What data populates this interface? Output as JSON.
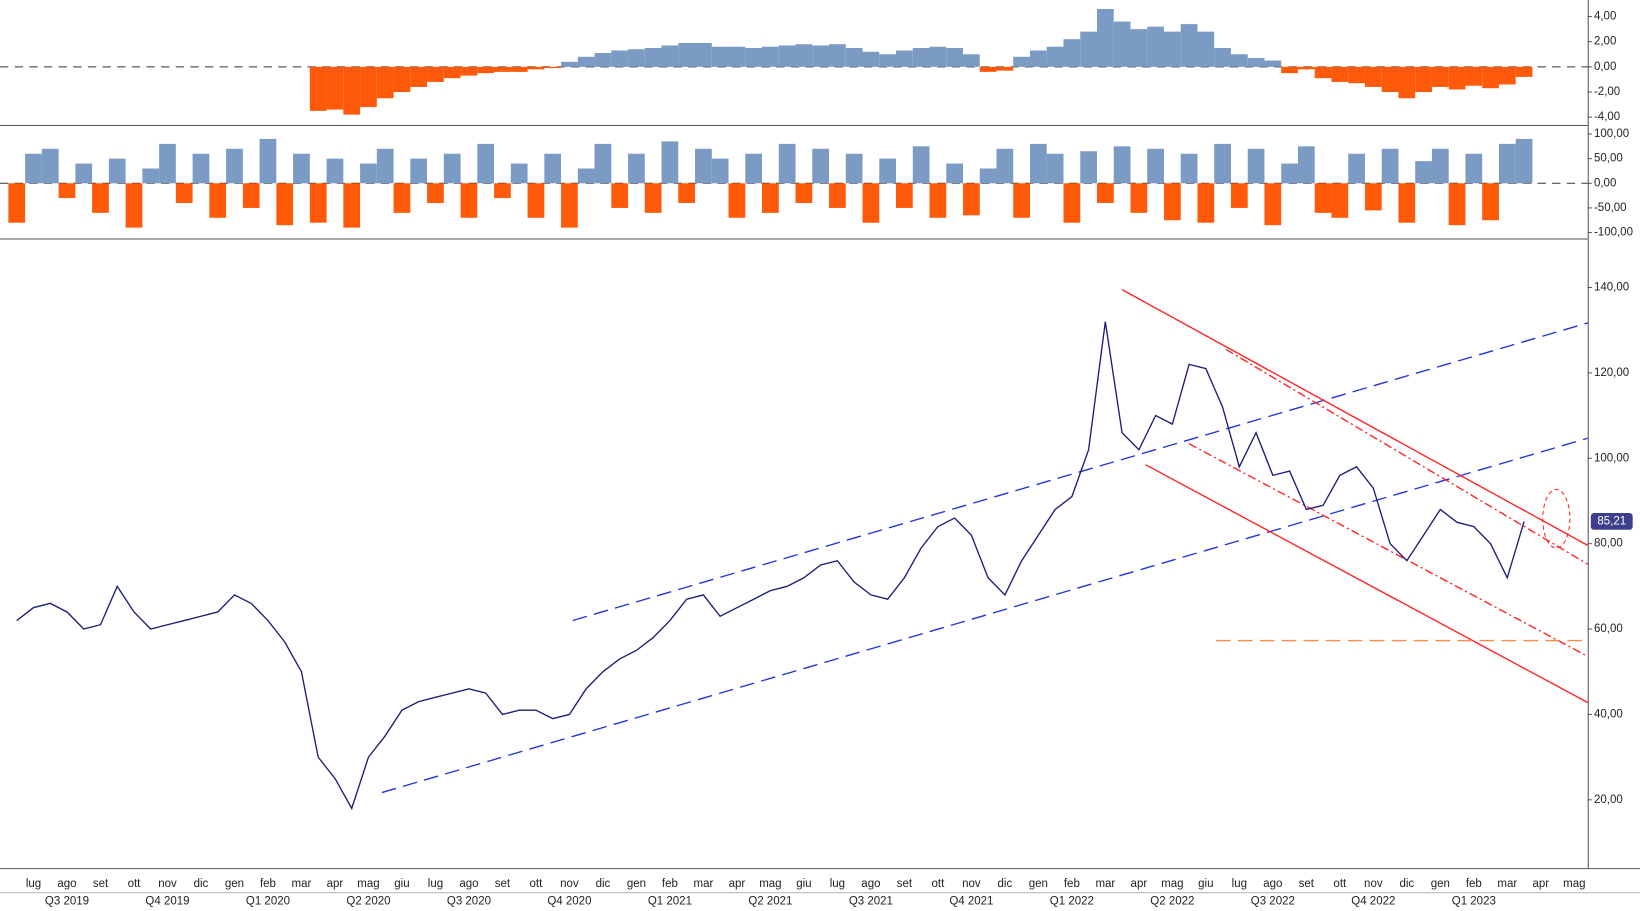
{
  "chart_data": [
    {
      "type": "bar",
      "x": [
        0,
        0.5,
        1,
        1.5,
        2,
        2.5,
        3,
        3.5,
        4,
        4.5,
        5,
        5.5,
        6,
        6.5,
        7,
        7.5,
        8,
        8.5,
        9,
        9.5,
        10,
        10.5,
        11,
        11.5,
        12,
        12.5,
        13,
        13.5,
        14,
        14.5,
        15,
        15.5,
        16,
        16.5,
        17,
        17.5,
        18,
        18.5,
        19,
        19.5,
        20,
        20.5,
        21,
        21.5,
        22,
        22.5,
        23,
        23.5,
        24,
        24.5,
        25,
        25.5,
        26,
        26.5,
        27,
        27.5,
        28,
        28.5,
        29,
        29.5,
        30,
        30.5,
        31,
        31.5,
        32,
        32.5,
        33,
        33.5,
        34,
        34.5,
        35,
        35.5,
        36,
        36.5,
        37,
        37.5,
        38,
        38.5,
        39,
        39.5,
        40,
        40.5,
        41,
        41.5,
        42,
        42.5,
        43,
        43.5,
        44,
        44.5,
        45
      ],
      "values": [
        null,
        null,
        null,
        null,
        null,
        null,
        null,
        null,
        null,
        null,
        null,
        null,
        null,
        null,
        null,
        null,
        null,
        null,
        -3.5,
        -3.4,
        -3.8,
        -3.2,
        -2.5,
        -2.0,
        -1.6,
        -1.2,
        -0.9,
        -0.7,
        -0.5,
        -0.4,
        -0.4,
        -0.2,
        -0.1,
        0.4,
        0.8,
        1.1,
        1.3,
        1.4,
        1.5,
        1.7,
        1.9,
        1.9,
        1.6,
        1.6,
        1.5,
        1.6,
        1.7,
        1.8,
        1.7,
        1.8,
        1.5,
        1.2,
        1.0,
        1.3,
        1.5,
        1.6,
        1.5,
        1.0,
        -0.4,
        -0.3,
        0.8,
        1.3,
        1.6,
        2.2,
        2.8,
        4.6,
        3.6,
        3.0,
        3.2,
        2.8,
        3.4,
        2.8,
        1.5,
        1.0,
        0.7,
        0.5,
        -0.5,
        -0.2,
        -0.9,
        -1.2,
        -1.3,
        -1.6,
        -2.0,
        -2.5,
        -2.0,
        -1.6,
        -1.8,
        -1.5,
        -1.7,
        -1.4,
        -0.8
      ],
      "pos_color": "#7b9bc4",
      "neg_color": "#ff5a0a",
      "xlim": [
        -0.5,
        46.9
      ],
      "ylim": [
        -4.5,
        4.9
      ],
      "yticks": [
        {
          "value": 4,
          "label": "4,00"
        },
        {
          "value": 2,
          "label": "2,00"
        },
        {
          "value": 0,
          "label": "0,00"
        },
        {
          "value": -2,
          "label": "-2,00"
        },
        {
          "value": -4,
          "label": "-4,00"
        }
      ]
    },
    {
      "type": "bar",
      "x": [
        0,
        0.5,
        1,
        1.5,
        2,
        2.5,
        3,
        3.5,
        4,
        4.5,
        5,
        5.5,
        6,
        6.5,
        7,
        7.5,
        8,
        8.5,
        9,
        9.5,
        10,
        10.5,
        11,
        11.5,
        12,
        12.5,
        13,
        13.5,
        14,
        14.5,
        15,
        15.5,
        16,
        16.5,
        17,
        17.5,
        18,
        18.5,
        19,
        19.5,
        20,
        20.5,
        21,
        21.5,
        22,
        22.5,
        23,
        23.5,
        24,
        24.5,
        25,
        25.5,
        26,
        26.5,
        27,
        27.5,
        28,
        28.5,
        29,
        29.5,
        30,
        30.5,
        31,
        31.5,
        32,
        32.5,
        33,
        33.5,
        34,
        34.5,
        35,
        35.5,
        36,
        36.5,
        37,
        37.5,
        38,
        38.5,
        39,
        39.5,
        40,
        40.5,
        41,
        41.5,
        42,
        42.5,
        43,
        43.5,
        44,
        44.5,
        45
      ],
      "values": [
        -80,
        60,
        70,
        -30,
        40,
        -60,
        50,
        -90,
        30,
        80,
        -40,
        60,
        -70,
        70,
        -50,
        90,
        -85,
        60,
        -80,
        50,
        -90,
        40,
        70,
        -60,
        50,
        -40,
        60,
        -70,
        80,
        -30,
        40,
        -70,
        60,
        -90,
        30,
        80,
        -50,
        60,
        -60,
        85,
        -40,
        70,
        50,
        -70,
        60,
        -60,
        80,
        -40,
        70,
        -50,
        60,
        -80,
        50,
        -50,
        75,
        -70,
        40,
        -65,
        30,
        70,
        -70,
        80,
        60,
        -80,
        65,
        -40,
        75,
        -60,
        70,
        -75,
        60,
        -80,
        80,
        -50,
        70,
        -85,
        40,
        75,
        -60,
        -70,
        60,
        -55,
        70,
        -80,
        45,
        70,
        -85,
        60,
        -75,
        80,
        90
      ],
      "pos_color": "#7b9bc4",
      "neg_color": "#ff5a0a",
      "xlim": [
        -0.5,
        46.9
      ],
      "ylim": [
        -112,
        113
      ],
      "yticks": [
        {
          "value": 100,
          "label": "100,00"
        },
        {
          "value": 50,
          "label": "50,00"
        },
        {
          "value": 0,
          "label": "0,00"
        },
        {
          "value": -50,
          "label": "-50,00"
        },
        {
          "value": -100,
          "label": "-100,00"
        }
      ]
    },
    {
      "type": "line",
      "x": [
        0,
        0.5,
        1,
        1.5,
        2,
        2.5,
        3,
        3.5,
        4,
        4.5,
        5,
        5.5,
        6,
        6.5,
        7,
        7.5,
        8,
        8.5,
        9,
        9.5,
        10,
        10.5,
        11,
        11.5,
        12,
        12.5,
        13,
        13.5,
        14,
        14.5,
        15,
        15.5,
        16,
        16.5,
        17,
        17.5,
        18,
        18.5,
        19,
        19.5,
        20,
        20.5,
        21,
        21.5,
        22,
        22.5,
        23,
        23.5,
        24,
        24.5,
        25,
        25.5,
        26,
        26.5,
        27,
        27.5,
        28,
        28.5,
        29,
        29.5,
        30,
        30.5,
        31,
        31.5,
        32,
        32.5,
        33,
        33.5,
        34,
        34.5,
        35,
        35.5,
        36,
        36.5,
        37,
        37.5,
        38,
        38.5,
        39,
        39.5,
        40,
        40.5,
        41,
        41.5,
        42,
        42.5,
        43,
        43.5,
        44,
        44.5,
        45
      ],
      "values": [
        62,
        65,
        66,
        64,
        60,
        61,
        70,
        64,
        60,
        61,
        62,
        63,
        64,
        68,
        66,
        62,
        57,
        50,
        30,
        25,
        18,
        30,
        35,
        41,
        43,
        44,
        45,
        46,
        45,
        40,
        41,
        41,
        39,
        40,
        46,
        50,
        53,
        55,
        58,
        62,
        67,
        68,
        63,
        65,
        67,
        69,
        70,
        72,
        75,
        76,
        71,
        68,
        67,
        72,
        79,
        84,
        86,
        82,
        72,
        68,
        76,
        82,
        88,
        91,
        102,
        132,
        106,
        102,
        110,
        108,
        122,
        121,
        112,
        98,
        106,
        96,
        97,
        88,
        89,
        96,
        98,
        93,
        80,
        76,
        82,
        88,
        85,
        84,
        80,
        72,
        85.21
      ],
      "value_labels": [
        null,
        null,
        null,
        null,
        null,
        null,
        null,
        null,
        null,
        null,
        null,
        null,
        null,
        null,
        null,
        null,
        null,
        null,
        null,
        null,
        null,
        null,
        null,
        null,
        null,
        null,
        null,
        null,
        null,
        null,
        null,
        null,
        null,
        null,
        null,
        null,
        null,
        null,
        null,
        null,
        null,
        null,
        null,
        null,
        null,
        null,
        null,
        null,
        null,
        null,
        null,
        null,
        null,
        null,
        null,
        null,
        null,
        null,
        null,
        null,
        null,
        null,
        null,
        null,
        null,
        null,
        null,
        null,
        null,
        null,
        null,
        null,
        null,
        null,
        null,
        null,
        null,
        null,
        null,
        null,
        null,
        null,
        null,
        null,
        null,
        null,
        null,
        null,
        null,
        null,
        "85,21"
      ],
      "color": "#1b1f7a",
      "label_color": "#3d3f8e",
      "xlim": [
        -0.5,
        46.9
      ],
      "ylim": [
        4,
        151
      ],
      "yticks": [
        {
          "value": 140,
          "label": "140,00"
        },
        {
          "value": 120,
          "label": "120,00"
        },
        {
          "value": 100,
          "label": "100,00"
        },
        {
          "value": 80,
          "label": "80,00"
        },
        {
          "value": 60,
          "label": "60,00"
        },
        {
          "value": 40,
          "label": "40,00"
        },
        {
          "value": 20,
          "label": "20,00"
        }
      ],
      "xticks": [
        {
          "value": 0.5,
          "label": "lug"
        },
        {
          "value": 1.5,
          "label": "ago"
        },
        {
          "value": 2.5,
          "label": "set"
        },
        {
          "value": 3.5,
          "label": "ott"
        },
        {
          "value": 4.5,
          "label": "nov"
        },
        {
          "value": 5.5,
          "label": "dic"
        },
        {
          "value": 6.5,
          "label": "gen"
        },
        {
          "value": 7.5,
          "label": "feb"
        },
        {
          "value": 8.5,
          "label": "mar"
        },
        {
          "value": 9.5,
          "label": "apr"
        },
        {
          "value": 10.5,
          "label": "mag"
        },
        {
          "value": 11.5,
          "label": "giu"
        },
        {
          "value": 12.5,
          "label": "lug"
        },
        {
          "value": 13.5,
          "label": "ago"
        },
        {
          "value": 14.5,
          "label": "set"
        },
        {
          "value": 15.5,
          "label": "ott"
        },
        {
          "value": 16.5,
          "label": "nov"
        },
        {
          "value": 17.5,
          "label": "dic"
        },
        {
          "value": 18.5,
          "label": "gen"
        },
        {
          "value": 19.5,
          "label": "feb"
        },
        {
          "value": 20.5,
          "label": "mar"
        },
        {
          "value": 21.5,
          "label": "apr"
        },
        {
          "value": 22.5,
          "label": "mag"
        },
        {
          "value": 23.5,
          "label": "giu"
        },
        {
          "value": 24.5,
          "label": "lug"
        },
        {
          "value": 25.5,
          "label": "ago"
        },
        {
          "value": 26.5,
          "label": "set"
        },
        {
          "value": 27.5,
          "label": "ott"
        },
        {
          "value": 28.5,
          "label": "nov"
        },
        {
          "value": 29.5,
          "label": "dic"
        },
        {
          "value": 30.5,
          "label": "gen"
        },
        {
          "value": 31.5,
          "label": "feb"
        },
        {
          "value": 32.5,
          "label": "mar"
        },
        {
          "value": 33.5,
          "label": "apr"
        },
        {
          "value": 34.5,
          "label": "mag"
        },
        {
          "value": 35.5,
          "label": "giu"
        },
        {
          "value": 36.5,
          "label": "lug"
        },
        {
          "value": 37.5,
          "label": "ago"
        },
        {
          "value": 38.5,
          "label": "set"
        },
        {
          "value": 39.5,
          "label": "ott"
        },
        {
          "value": 40.5,
          "label": "nov"
        },
        {
          "value": 41.5,
          "label": "dic"
        },
        {
          "value": 42.5,
          "label": "gen"
        },
        {
          "value": 43.5,
          "label": "feb"
        },
        {
          "value": 44.5,
          "label": "mar"
        },
        {
          "value": 45.5,
          "label": "apr"
        },
        {
          "value": 46.5,
          "label": "mag"
        }
      ],
      "quarters": [
        {
          "value": 1.5,
          "label": "Q3 2019"
        },
        {
          "value": 4.5,
          "label": "Q4 2019"
        },
        {
          "value": 7.5,
          "label": "Q1 2020"
        },
        {
          "value": 10.5,
          "label": "Q2 2020"
        },
        {
          "value": 13.5,
          "label": "Q3 2020"
        },
        {
          "value": 16.5,
          "label": "Q4 2020"
        },
        {
          "value": 19.5,
          "label": "Q1 2021"
        },
        {
          "value": 22.5,
          "label": "Q2 2021"
        },
        {
          "value": 25.5,
          "label": "Q3 2021"
        },
        {
          "value": 28.5,
          "label": "Q4 2021"
        },
        {
          "value": 31.5,
          "label": "Q1 2022"
        },
        {
          "value": 34.5,
          "label": "Q2 2022"
        },
        {
          "value": 37.5,
          "label": "Q3 2022"
        },
        {
          "value": 40.5,
          "label": "Q4 2022"
        },
        {
          "value": 43.5,
          "label": "Q1 2023"
        }
      ],
      "trendlines": [
        {
          "x": [
            16.6,
            46.9
          ],
          "y": [
            62,
            131.7
          ],
          "color": "#2233dd",
          "dash": "dashed"
        },
        {
          "x": [
            10.9,
            46.9
          ],
          "y": [
            21.7,
            104.7
          ],
          "color": "#2233dd",
          "dash": "dashed"
        },
        {
          "x": [
            33.0,
            46.9
          ],
          "y": [
            139.5,
            79.6
          ],
          "color": "#ff2020",
          "dash": "solid"
        },
        {
          "x": [
            33.7,
            46.9
          ],
          "y": [
            98.5,
            42.8
          ],
          "color": "#ff2020",
          "dash": "solid"
        },
        {
          "x": [
            36.1,
            46.9
          ],
          "y": [
            125.5,
            75.2
          ],
          "color": "#ff2020",
          "dash": "dashdot"
        },
        {
          "x": [
            35.0,
            46.9
          ],
          "y": [
            103.4,
            53.6
          ],
          "color": "#ff2020",
          "dash": "dashdot"
        },
        {
          "x": [
            35.8,
            46.9
          ],
          "y": [
            57.3,
            57.3
          ],
          "color": "#ff8844",
          "dash": "dashed"
        }
      ]
    }
  ]
}
